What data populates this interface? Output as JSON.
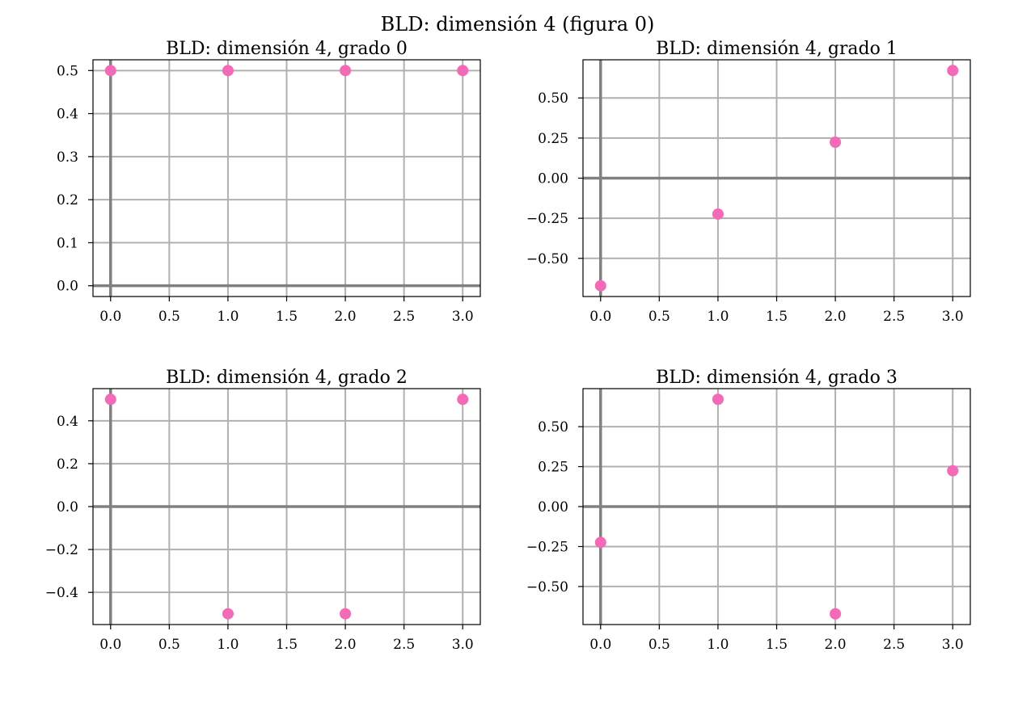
{
  "figure": {
    "title": "BLD: dimensión 4 (figura 0)"
  },
  "colors": {
    "point": "#f569b7",
    "grid": "#b0b0b0",
    "zero_axis": "#808080",
    "frame": "#000000"
  },
  "chart_data": [
    {
      "type": "scatter",
      "title": "BLD: dimensión 4, grado 0",
      "x": [
        0,
        1,
        2,
        3
      ],
      "y": [
        0.5,
        0.5,
        0.5,
        0.5
      ],
      "xlim": [
        -0.15,
        3.15
      ],
      "ylim": [
        -0.025,
        0.525
      ],
      "xticks": [
        0.0,
        0.5,
        1.0,
        1.5,
        2.0,
        2.5,
        3.0
      ],
      "xtick_labels": [
        "0.0",
        "0.5",
        "1.0",
        "1.5",
        "2.0",
        "2.5",
        "3.0"
      ],
      "yticks": [
        0.0,
        0.1,
        0.2,
        0.3,
        0.4,
        0.5
      ],
      "ytick_labels": [
        "0.0",
        "0.1",
        "0.2",
        "0.3",
        "0.4",
        "0.5"
      ],
      "grid": true
    },
    {
      "type": "scatter",
      "title": "BLD: dimensión 4, grado 1",
      "x": [
        0,
        1,
        2,
        3
      ],
      "y": [
        -0.671,
        -0.224,
        0.224,
        0.671
      ],
      "xlim": [
        -0.15,
        3.15
      ],
      "ylim": [
        -0.738,
        0.738
      ],
      "xticks": [
        0.0,
        0.5,
        1.0,
        1.5,
        2.0,
        2.5,
        3.0
      ],
      "xtick_labels": [
        "0.0",
        "0.5",
        "1.0",
        "1.5",
        "2.0",
        "2.5",
        "3.0"
      ],
      "yticks": [
        -0.5,
        -0.25,
        0.0,
        0.25,
        0.5
      ],
      "ytick_labels": [
        "−0.50",
        "−0.25",
        "0.00",
        "0.25",
        "0.50"
      ],
      "grid": true
    },
    {
      "type": "scatter",
      "title": "BLD: dimensión 4, grado 2",
      "x": [
        0,
        1,
        2,
        3
      ],
      "y": [
        0.5,
        -0.5,
        -0.5,
        0.5
      ],
      "xlim": [
        -0.15,
        3.15
      ],
      "ylim": [
        -0.55,
        0.55
      ],
      "xticks": [
        0.0,
        0.5,
        1.0,
        1.5,
        2.0,
        2.5,
        3.0
      ],
      "xtick_labels": [
        "0.0",
        "0.5",
        "1.0",
        "1.5",
        "2.0",
        "2.5",
        "3.0"
      ],
      "yticks": [
        -0.4,
        -0.2,
        0.0,
        0.2,
        0.4
      ],
      "ytick_labels": [
        "−0.4",
        "−0.2",
        "0.0",
        "0.2",
        "0.4"
      ],
      "grid": true
    },
    {
      "type": "scatter",
      "title": "BLD: dimensión 4, grado 3",
      "x": [
        0,
        1,
        2,
        3
      ],
      "y": [
        -0.224,
        0.671,
        -0.671,
        0.224
      ],
      "xlim": [
        -0.15,
        3.15
      ],
      "ylim": [
        -0.738,
        0.738
      ],
      "xticks": [
        0.0,
        0.5,
        1.0,
        1.5,
        2.0,
        2.5,
        3.0
      ],
      "xtick_labels": [
        "0.0",
        "0.5",
        "1.0",
        "1.5",
        "2.0",
        "2.5",
        "3.0"
      ],
      "yticks": [
        -0.5,
        -0.25,
        0.0,
        0.25,
        0.5
      ],
      "ytick_labels": [
        "−0.50",
        "−0.25",
        "0.00",
        "0.25",
        "0.50"
      ],
      "grid": true
    }
  ]
}
